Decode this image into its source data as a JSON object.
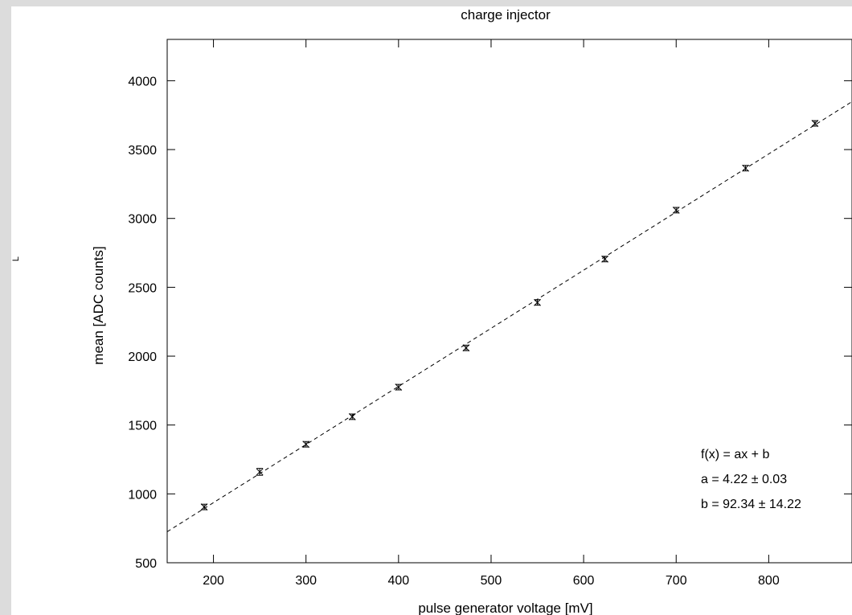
{
  "chart_data": {
    "type": "scatter",
    "title": "charge injector",
    "xlabel": "pulse generator voltage [mV]",
    "ylabel": "mean [ADC counts]",
    "side_mark": "L",
    "xlim": [
      150,
      890
    ],
    "ylim": [
      500,
      4300
    ],
    "xticks": [
      200,
      300,
      400,
      500,
      600,
      700,
      800
    ],
    "yticks": [
      500,
      1000,
      1500,
      2000,
      2500,
      3000,
      3500,
      4000
    ],
    "grid": false,
    "series": [
      {
        "x": [
          190,
          250,
          300,
          350,
          400,
          473,
          550,
          623,
          700,
          775,
          850
        ],
        "y": [
          905,
          1160,
          1360,
          1560,
          1775,
          2060,
          2390,
          2705,
          3060,
          3365,
          3690
        ],
        "yerr": [
          20,
          25,
          20,
          20,
          20,
          20,
          20,
          20,
          20,
          20,
          20
        ],
        "color": "#000000"
      }
    ],
    "fit": {
      "slope": 4.22,
      "intercept": 92.34,
      "style": "dashed",
      "color": "#000000",
      "legend_lines": [
        "f(x) = ax + b",
        "a = 4.22 ± 0.03",
        "b = 92.34 ± 14.22"
      ]
    }
  }
}
